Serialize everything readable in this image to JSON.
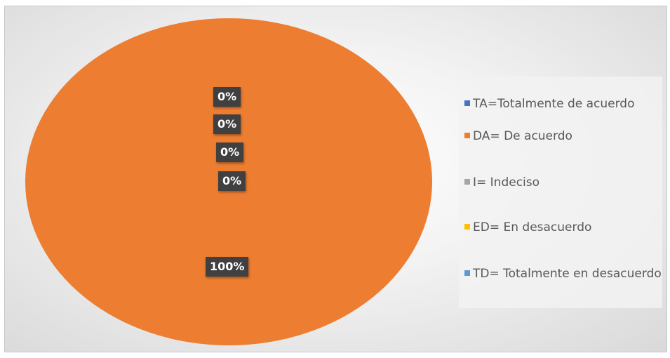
{
  "chart_data": {
    "type": "pie",
    "title": "",
    "categories": [
      "TA=Totalmente de acuerdo",
      "DA= De acuerdo",
      "I= Indeciso",
      "ED= En desacuerdo",
      "TD= Totalmente en desacuerdo"
    ],
    "values": [
      0,
      100,
      0,
      0,
      0
    ],
    "data_labels": [
      "0%",
      "100%",
      "0%",
      "0%",
      "0%"
    ],
    "colors": [
      "#4472c4",
      "#ed7d31",
      "#a5a5a5",
      "#ffc000",
      "#5b9bd5"
    ],
    "legend_position": "right"
  }
}
